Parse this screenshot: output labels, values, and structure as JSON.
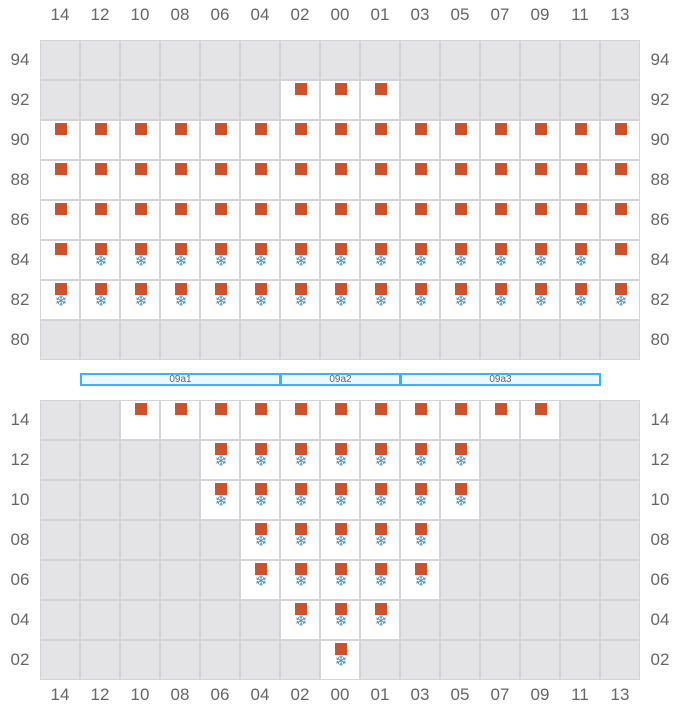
{
  "columns": [
    "14",
    "12",
    "10",
    "08",
    "06",
    "04",
    "02",
    "00",
    "01",
    "03",
    "05",
    "07",
    "09",
    "11",
    "13"
  ],
  "legend_icons": {
    "square": "equipment-square-icon",
    "snowflake": "cooling-snowflake-icon"
  },
  "colors": {
    "square": "#cf512b",
    "snowflake": "#3b8fe0",
    "empty_cell": "#e4e4e7",
    "occupied_cell": "#ffffff",
    "zone_border": "#38b6f0"
  },
  "top_grid": {
    "rows": [
      {
        "label": "94",
        "cells": "..............."
      },
      {
        "label": "92",
        "cells": "......sss......"
      },
      {
        "label": "90",
        "cells": "sssssssssssssss"
      },
      {
        "label": "88",
        "cells": "sssssssssssssss"
      },
      {
        "label": "86",
        "cells": "sssssssssssssss"
      },
      {
        "label": "84",
        "cells": "sfffffffffffffs"
      },
      {
        "label": "82",
        "cells": "fffffffffffffff"
      },
      {
        "label": "80",
        "cells": "..............."
      }
    ]
  },
  "zones": [
    {
      "label": "09a1",
      "from": 1,
      "to": 6
    },
    {
      "label": "09a2",
      "from": 6,
      "to": 9
    },
    {
      "label": "09a3",
      "from": 9,
      "to": 14
    }
  ],
  "bottom_grid": {
    "rows": [
      {
        "label": "14",
        "cells": "..sssssssssss.."
      },
      {
        "label": "12",
        "cells": "....fffffff...."
      },
      {
        "label": "10",
        "cells": "....fffffff...."
      },
      {
        "label": "08",
        "cells": ".....fffff....."
      },
      {
        "label": "06",
        "cells": ".....fffff....."
      },
      {
        "label": "04",
        "cells": "......fff......"
      },
      {
        "label": "02",
        "cells": ".......f......."
      }
    ]
  }
}
